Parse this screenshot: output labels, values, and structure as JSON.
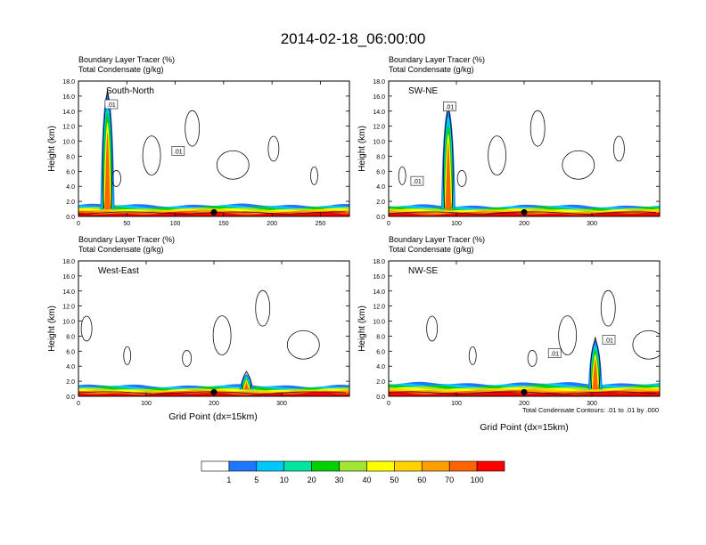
{
  "title": "2014-02-18_06:00:00",
  "field_labels": {
    "line1": "Boundary Layer Tracer   (%)",
    "line2": "Total Condensate   (g/kg)"
  },
  "ylabel": "Height (km)",
  "xlabel": "Grid Point (dx=15km)",
  "contour_note": "Total Condensate Contours: .01 to .01 by .000",
  "contour_label": ".01",
  "colorbar": {
    "ticks": [
      "1",
      "5",
      "10",
      "20",
      "30",
      "40",
      "50",
      "60",
      "70",
      "100"
    ],
    "colors": [
      "#ffffff",
      "#1e78ff",
      "#00c8ff",
      "#00e6a0",
      "#00d200",
      "#a0e632",
      "#ffff00",
      "#ffd200",
      "#ffa000",
      "#ff6400",
      "#ff0000"
    ]
  },
  "chart_data": [
    {
      "type": "area",
      "name": "South-North",
      "ylim": [
        0,
        18
      ],
      "xlim": [
        0,
        280
      ],
      "yticks": [
        "0.0",
        "2.0",
        "4.0",
        "6.0",
        "8.0",
        "10.0",
        "12.0",
        "14.0",
        "16.0",
        "18.0"
      ],
      "xticks": [
        {
          "v": 0,
          "label": "0"
        },
        {
          "v": 50,
          "label": "50"
        },
        {
          "v": 100,
          "label": "100"
        },
        {
          "v": 150,
          "label": "150"
        },
        {
          "v": 200,
          "label": "200"
        },
        {
          "v": 250,
          "label": "250"
        }
      ],
      "marker_x": 140,
      "spike_x": 30,
      "spike_top_km": 16.5,
      "bl_top_km": 1.5,
      "contour_labels": [
        {
          "x": 34,
          "y": 14.8
        },
        {
          "x": 103,
          "y": 8.6
        }
      ]
    },
    {
      "type": "area",
      "name": "SW-NE",
      "ylim": [
        0,
        18
      ],
      "xlim": [
        0,
        400
      ],
      "yticks": [
        "0.0",
        "2.0",
        "4.0",
        "6.0",
        "8.0",
        "10.0",
        "12.0",
        "14.0",
        "16.0",
        "18.0"
      ],
      "xticks": [
        {
          "v": 0,
          "label": "0"
        },
        {
          "v": 100,
          "label": "100"
        },
        {
          "v": 200,
          "label": "200"
        },
        {
          "v": 300,
          "label": "300"
        }
      ],
      "marker_x": 200,
      "spike_x": 88,
      "spike_top_km": 14.5,
      "bl_top_km": 1.4,
      "contour_labels": [
        {
          "x": 90,
          "y": 14.5
        },
        {
          "x": 42,
          "y": 4.6
        }
      ]
    },
    {
      "type": "area",
      "name": "West-East",
      "ylim": [
        0,
        18
      ],
      "xlim": [
        0,
        400
      ],
      "yticks": [
        "0.0",
        "2.0",
        "4.0",
        "6.0",
        "8.0",
        "10.0",
        "12.0",
        "14.0",
        "16.0",
        "18.0"
      ],
      "xticks": [
        {
          "v": 0,
          "label": "0"
        },
        {
          "v": 100,
          "label": "100"
        },
        {
          "v": 200,
          "label": "200"
        },
        {
          "v": 300,
          "label": "300"
        }
      ],
      "marker_x": 200,
      "spike_x": 248,
      "spike_top_km": 3.0,
      "bl_top_km": 1.4,
      "contour_labels": []
    },
    {
      "type": "area",
      "name": "NW-SE",
      "ylim": [
        0,
        18
      ],
      "xlim": [
        0,
        400
      ],
      "yticks": [
        "0.0",
        "2.0",
        "4.0",
        "6.0",
        "8.0",
        "10.0",
        "12.0",
        "14.0",
        "16.0",
        "18.0"
      ],
      "xticks": [
        {
          "v": 0,
          "label": "0"
        },
        {
          "v": 100,
          "label": "100"
        },
        {
          "v": 200,
          "label": "200"
        },
        {
          "v": 300,
          "label": "300"
        }
      ],
      "marker_x": 200,
      "spike_x": 305,
      "spike_top_km": 7.5,
      "bl_top_km": 1.7,
      "contour_labels": [
        {
          "x": 245,
          "y": 5.6
        },
        {
          "x": 325,
          "y": 7.4
        }
      ]
    }
  ]
}
